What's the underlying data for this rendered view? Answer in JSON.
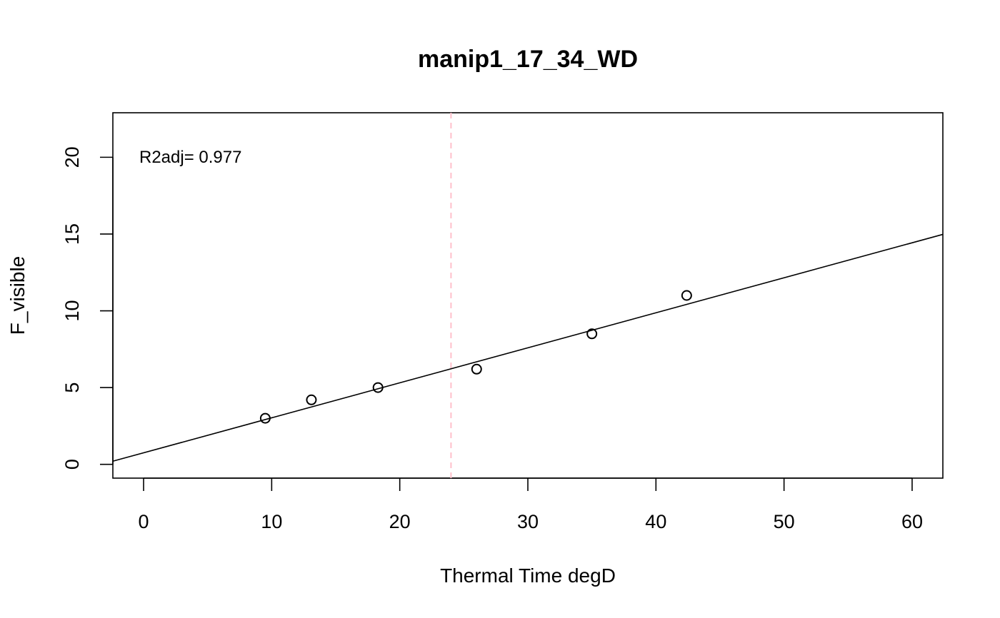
{
  "chart_data": {
    "type": "scatter",
    "title": "manip1_17_34_WD",
    "xlabel": "Thermal Time degD",
    "ylabel": "F_visible",
    "xlim": [
      -2.4,
      62.4
    ],
    "ylim": [
      -0.9,
      22.9
    ],
    "x_ticks": [
      0,
      10,
      20,
      30,
      40,
      50,
      60
    ],
    "y_ticks": [
      0,
      5,
      10,
      15,
      20
    ],
    "x_tick_labels": [
      "0",
      "10",
      "20",
      "30",
      "40",
      "50",
      "60"
    ],
    "y_tick_labels": [
      "0",
      "5",
      "10",
      "15",
      "20"
    ],
    "points": [
      {
        "x": 9.5,
        "y": 3.0
      },
      {
        "x": 13.1,
        "y": 4.2
      },
      {
        "x": 18.3,
        "y": 5.0
      },
      {
        "x": 26.0,
        "y": 6.2
      },
      {
        "x": 35.0,
        "y": 8.5
      },
      {
        "x": 42.4,
        "y": 11.0
      }
    ],
    "fit_line": {
      "intercept": 0.75,
      "slope": 0.228
    },
    "vline": {
      "x": 24.0,
      "color": "#ffc0cb",
      "style": "dashed"
    },
    "annotation": "R2adj= 0.977",
    "grid": false,
    "marker": "open-circle",
    "colors": {
      "points": "#000000",
      "line": "#000000",
      "vline": "#ffc0cb"
    }
  }
}
